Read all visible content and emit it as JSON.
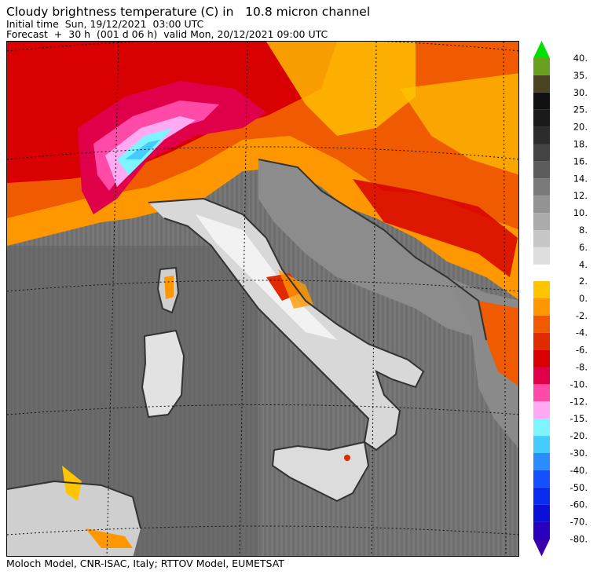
{
  "header": {
    "title": "Cloudy brightness temperature (C) in   10.8 micron channel",
    "initial_time": "Initial time  Sun, 19/12/2021  03:00 UTC",
    "forecast": "Forecast  +  30 h  (001 d 06 h)  valid Mon, 20/12/2021 09:00 UTC"
  },
  "footer": {
    "credit": "Moloch Model, CNR-ISAC, Italy; RTTOV Model, EUMETSAT"
  },
  "legend": {
    "upper": {
      "arrow_color": "#00e000",
      "bins": [
        {
          "label": "40.",
          "color": "#6aa020"
        },
        {
          "label": "35.",
          "color": "#4a4220"
        },
        {
          "label": "30.",
          "color": "#111111"
        },
        {
          "label": "25.",
          "color": "#1a1a1a"
        },
        {
          "label": "20.",
          "color": "#2c2c2c"
        },
        {
          "label": "18.",
          "color": "#444444"
        },
        {
          "label": "16.",
          "color": "#5c5c5c"
        },
        {
          "label": "14.",
          "color": "#7a7a7a"
        },
        {
          "label": "12.",
          "color": "#939393"
        },
        {
          "label": "10.",
          "color": "#ababab"
        },
        {
          "label": "8.",
          "color": "#c6c6c6"
        },
        {
          "label": "6.",
          "color": "#dedede"
        },
        {
          "label": "4.",
          "color": ""
        }
      ]
    },
    "lower": {
      "arrow_color": "#3b00a8",
      "bins": [
        {
          "label": "2.",
          "color": "#ffc400"
        },
        {
          "label": "0.",
          "color": "#ff9800"
        },
        {
          "label": "-2.",
          "color": "#f05a00"
        },
        {
          "label": "-4.",
          "color": "#e02a00"
        },
        {
          "label": "-6.",
          "color": "#d80000"
        },
        {
          "label": "-8.",
          "color": "#e0004a"
        },
        {
          "label": "-10.",
          "color": "#ff4aa8"
        },
        {
          "label": "-12.",
          "color": "#ffaaf2"
        },
        {
          "label": "-15.",
          "color": "#7ef4ff"
        },
        {
          "label": "-20.",
          "color": "#44ccff"
        },
        {
          "label": "-30.",
          "color": "#2a8cff"
        },
        {
          "label": "-40.",
          "color": "#1450ff"
        },
        {
          "label": "-50.",
          "color": "#0a2cf0"
        },
        {
          "label": "-60.",
          "color": "#0a10d8"
        },
        {
          "label": "-70.",
          "color": "#2a00c0"
        },
        {
          "label": "-80.",
          "color": ""
        }
      ]
    }
  }
}
